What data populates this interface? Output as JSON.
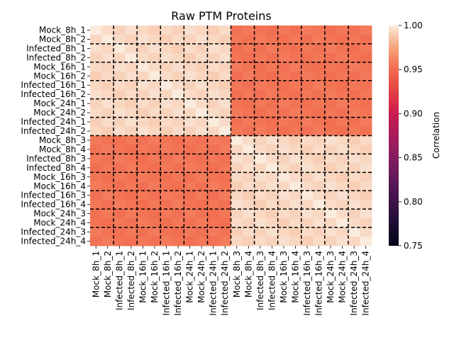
{
  "chart_data": {
    "type": "heatmap",
    "title": "Raw PTM Proteins",
    "xlabel": "",
    "ylabel": "",
    "samples": [
      "Mock_8h_1",
      "Mock_8h_2",
      "Infected_8h_1",
      "Infected_8h_2",
      "Mock_16h_1",
      "Mock_16h_2",
      "Infected_16h_1",
      "Infected_16h_2",
      "Mock_24h_1",
      "Mock_24h_2",
      "Infected_24h_1",
      "Infected_24h_2",
      "Mock_8h_3",
      "Mock_8h_4",
      "Infected_8h_3",
      "Infected_8h_4",
      "Mock_16h_3",
      "Mock_16h_4",
      "Infected_16h_3",
      "Infected_16h_4",
      "Mock_24h_3",
      "Mock_24h_4",
      "Infected_24h_3",
      "Infected_24h_4"
    ],
    "block_correlation": {
      "within_batch": 0.993,
      "between_batch": 0.955
    },
    "colorbar": {
      "label": "Correlation",
      "vmin": 0.75,
      "vmax": 1.0,
      "ticks": [
        "0.75",
        "0.80",
        "0.85",
        "0.90",
        "0.95",
        "1.00"
      ],
      "colormap": "rocket"
    },
    "group_dividers": "dashed black lines every 2 samples",
    "grid": false
  }
}
